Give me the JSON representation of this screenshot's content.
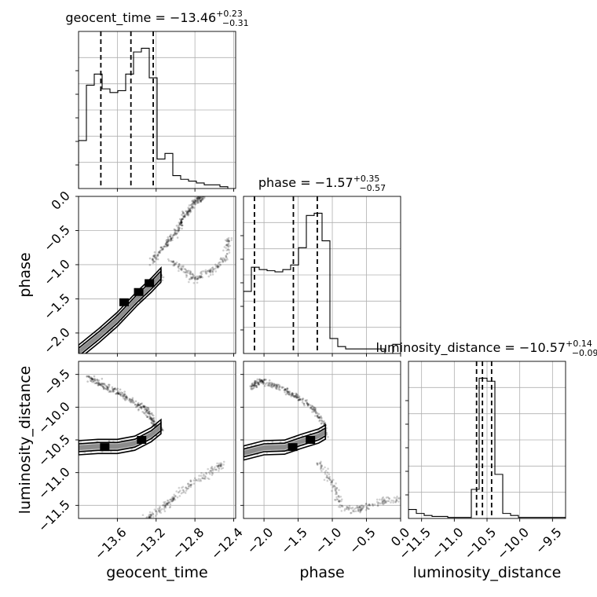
{
  "chart_data": {
    "type": "corner",
    "parameters": [
      {
        "name": "geocent_time",
        "label": "geocent_time",
        "range": [
          -14.0,
          -12.38
        ],
        "ticks": [
          -13.6,
          -13.2,
          -12.8,
          -12.4
        ],
        "tick_labels": [
          "−13.6",
          "−13.2",
          "−12.8",
          "−12.4"
        ],
        "title": {
          "main": "geocent_time = −13.46",
          "plus": "+0.23",
          "minus": "−0.31"
        },
        "quantiles": [
          -13.77,
          -13.46,
          -13.23
        ]
      },
      {
        "name": "phase",
        "label": "phase",
        "range": [
          -2.3,
          0.0
        ],
        "ticks": [
          -2.0,
          -1.5,
          -1.0,
          -0.5,
          0.0
        ],
        "tick_labels": [
          "−2.0",
          "−1.5",
          "−1.0",
          "−0.5",
          "0.0"
        ],
        "title": {
          "main": "phase = −1.57",
          "plus": "+0.35",
          "minus": "−0.57"
        },
        "quantiles": [
          -2.14,
          -1.57,
          -1.22
        ]
      },
      {
        "name": "luminosity_distance",
        "label": "luminosity_distance",
        "range": [
          -11.7,
          -9.3
        ],
        "ticks": [
          -11.5,
          -11.0,
          -10.5,
          -10.0,
          -9.5
        ],
        "tick_labels": [
          "−11.5",
          "−11.0",
          "−10.5",
          "−10.0",
          "−9.5"
        ],
        "title": {
          "main": "luminosity_distance = −10.57",
          "plus": "+0.14",
          "minus": "−0.09"
        },
        "quantiles": [
          -10.66,
          -10.57,
          -10.43
        ]
      }
    ],
    "histograms": [
      {
        "param": "geocent_time",
        "bin_edges_start": -14.0,
        "bin_width": 0.081,
        "counts": [
          26,
          56,
          62,
          54,
          52,
          53,
          62,
          74,
          76,
          60,
          16,
          19,
          7,
          5,
          4,
          3,
          2,
          2,
          1,
          0
        ]
      },
      {
        "param": "phase",
        "bin_edges_start": -2.3,
        "bin_width": 0.115,
        "counts": [
          54,
          75,
          73,
          72,
          71,
          73,
          77,
          92,
          120,
          122,
          98,
          13,
          6,
          4,
          4,
          4,
          4,
          4,
          0,
          8
        ]
      },
      {
        "param": "luminosity_distance",
        "bin_edges_start": -11.7,
        "bin_width": 0.12,
        "counts": [
          9,
          5,
          3,
          2,
          2,
          1,
          1,
          1,
          29,
          140,
          137,
          44,
          5,
          3,
          1,
          1,
          1,
          1,
          1,
          1
        ]
      }
    ],
    "samples_2d": [
      {
        "x": "geocent_time",
        "y": "phase",
        "ridge": [
          [
            -14.0,
            -2.28
          ],
          [
            -13.8,
            -2.05
          ],
          [
            -13.6,
            -1.8
          ],
          [
            -13.4,
            -1.5
          ],
          [
            -13.25,
            -1.3
          ],
          [
            -13.15,
            -1.15
          ]
        ],
        "tail": [
          [
            -13.25,
            -0.95
          ],
          [
            -13.1,
            -0.7
          ],
          [
            -12.98,
            -0.5
          ],
          [
            -12.9,
            -0.28
          ],
          [
            -12.8,
            -0.08
          ],
          [
            -12.7,
            0.0
          ]
        ],
        "lobe": [
          [
            -13.05,
            -0.95
          ],
          [
            -12.9,
            -1.08
          ],
          [
            -12.8,
            -1.22
          ],
          [
            -12.65,
            -1.1
          ],
          [
            -12.5,
            -0.95
          ],
          [
            -12.45,
            -0.6
          ]
        ],
        "peaks": [
          [
            -13.27,
            -1.27
          ],
          [
            -13.38,
            -1.4
          ],
          [
            -13.53,
            -1.55
          ]
        ]
      },
      {
        "x": "geocent_time",
        "y": "luminosity_distance",
        "ridge": [
          [
            -14.0,
            -10.62
          ],
          [
            -13.8,
            -10.6
          ],
          [
            -13.6,
            -10.6
          ],
          [
            -13.42,
            -10.55
          ],
          [
            -13.25,
            -10.42
          ],
          [
            -13.15,
            -10.3
          ]
        ],
        "tail": [
          [
            -13.2,
            -10.3
          ],
          [
            -13.3,
            -10.05
          ],
          [
            -13.5,
            -9.85
          ],
          [
            -13.7,
            -9.7
          ],
          [
            -13.9,
            -9.55
          ]
        ],
        "lobe": [
          [
            -13.3,
            -11.7
          ],
          [
            -13.1,
            -11.5
          ],
          [
            -12.9,
            -11.25
          ],
          [
            -12.7,
            -11.05
          ],
          [
            -12.5,
            -10.85
          ]
        ],
        "peaks": [
          [
            -13.73,
            -10.61
          ],
          [
            -13.35,
            -10.5
          ]
        ]
      },
      {
        "x": "phase",
        "y": "luminosity_distance",
        "ridge": [
          [
            -2.3,
            -10.7
          ],
          [
            -2.0,
            -10.62
          ],
          [
            -1.7,
            -10.61
          ],
          [
            -1.45,
            -10.52
          ],
          [
            -1.2,
            -10.44
          ],
          [
            -1.1,
            -10.38
          ]
        ],
        "tail": [
          [
            -1.1,
            -10.3
          ],
          [
            -1.3,
            -10.0
          ],
          [
            -1.55,
            -9.82
          ],
          [
            -1.8,
            -9.68
          ],
          [
            -2.05,
            -9.6
          ],
          [
            -2.2,
            -9.7
          ]
        ],
        "lobe": [
          [
            -1.2,
            -10.85
          ],
          [
            -1.0,
            -11.15
          ],
          [
            -0.85,
            -11.55
          ],
          [
            -0.6,
            -11.55
          ],
          [
            -0.3,
            -11.45
          ],
          [
            0.0,
            -11.4
          ]
        ],
        "peaks": [
          [
            -1.58,
            -10.61
          ],
          [
            -1.32,
            -10.5
          ]
        ]
      }
    ]
  }
}
